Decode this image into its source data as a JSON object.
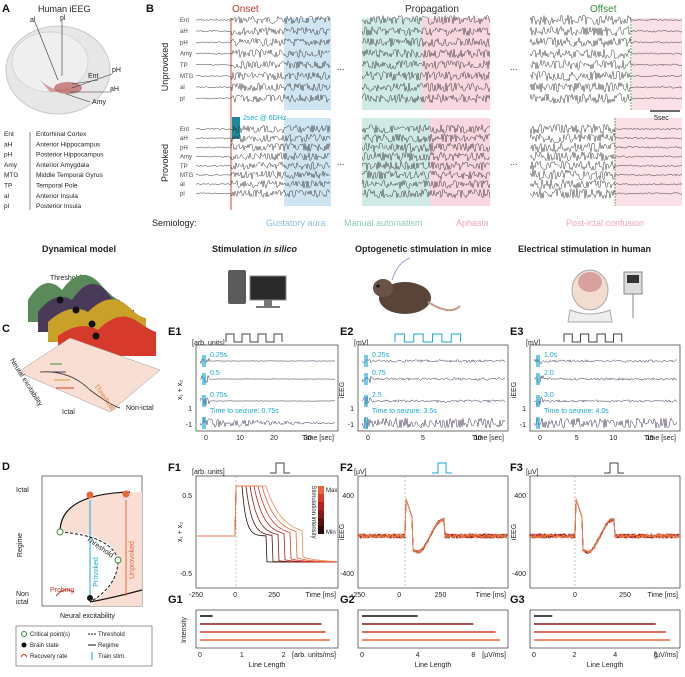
{
  "colors": {
    "onset": "#c0392b",
    "offset": "#3a8f3a",
    "gustatory": "#a9cfe8",
    "manual": "#a8d9cf",
    "aphasia": "#f2b6c6",
    "postictal": "#f6c6d4",
    "stim_cyan": "#18a8d8",
    "trace_dark": "#3b2a4a",
    "red": "#c0392b",
    "orange": "#e8663a"
  },
  "panelA": {
    "letter": "A",
    "title": "Human iEEG",
    "brain_labels": [
      "al",
      "pl",
      "Ent",
      "pH",
      "aH",
      "Amy"
    ],
    "legend": [
      {
        "abbr": "Ent",
        "name": "Entorhinal Cortex"
      },
      {
        "abbr": "aH",
        "name": "Anterior Hippocampus"
      },
      {
        "abbr": "pH",
        "name": "Posterior Hippocampus"
      },
      {
        "abbr": "Amy",
        "name": "Anterior Amygdala"
      },
      {
        "abbr": "MTG",
        "name": "Middle Temporal Gyrus"
      },
      {
        "abbr": "TP",
        "name": "Temporal Pole"
      },
      {
        "abbr": "al",
        "name": "Anterior Insula"
      },
      {
        "abbr": "pl",
        "name": "Posterior Insula"
      }
    ]
  },
  "panelB": {
    "letter": "B",
    "phases": [
      "Onset",
      "Propagation",
      "Offset"
    ],
    "rows": [
      "Unprovoked",
      "Provoked"
    ],
    "channels": [
      "Ent",
      "aH",
      "pH",
      "Amy",
      "TP",
      "MTG",
      "al",
      "pl"
    ],
    "ellipsis": "...",
    "scalebar": "5sec",
    "stim_note": "2sec @ 6DHz",
    "semiology_label": "Semiology:",
    "semiology": [
      "Gustatory aura",
      "Manual automatism",
      "Aphasia",
      "Post-ictal confusion"
    ]
  },
  "panelC": {
    "letter": "C",
    "title": "Dynamical model",
    "threshold": "Threshold",
    "threshold2": "Threshold",
    "axis": "Neural excitability",
    "ictal": "Ictal",
    "nonictal": "Non-ictal"
  },
  "headers": {
    "insilico_prefix": "Stimulation",
    "insilico_em": "in silico",
    "opto": "Optogenetic stimulation in mice",
    "elec": "Electrical stimulation in human"
  },
  "panelE": [
    {
      "letter": "E1",
      "unit": "[arb. units]",
      "ylabel": "x₁ + x₂",
      "durations": [
        "0.25s",
        "0.5",
        "0.75s"
      ],
      "seizure": "Time to seizure: 0.75s",
      "yticks": [
        "1",
        "-1"
      ],
      "xticks": [
        "0",
        "10",
        "20",
        "30"
      ],
      "xlabel": "Time [sec]"
    },
    {
      "letter": "E2",
      "unit": "[mV]",
      "ylabel": "iEEG",
      "durations": [
        "0.25s",
        "0.75",
        "2.5"
      ],
      "seizure": "Time to seizure: 3.5s",
      "yticks": [
        "1",
        "-1"
      ],
      "xticks": [
        "0",
        "5",
        "10"
      ],
      "xlabel": "Time [sec]"
    },
    {
      "letter": "E3",
      "unit": "[mV]",
      "ylabel": "iEEG",
      "durations": [
        "1.0s",
        "2.0",
        "3.0"
      ],
      "seizure": "Time to seizure: 4.0s",
      "yticks": [
        "1",
        "-1"
      ],
      "xticks": [
        "0",
        "5",
        "10",
        "15"
      ],
      "xlabel": "Time [sec]"
    }
  ],
  "panelF": [
    {
      "letter": "F1",
      "unit": "[arb. units]",
      "ylabel": "x₁ + x₂",
      "yticks": [
        "0.5",
        "-0.5"
      ],
      "xticks": [
        "-250",
        "0",
        "250"
      ],
      "xlabel": "Time [ms]",
      "cbar_title": "Stimulation intensity",
      "cbar_max": "Max",
      "cbar_min": "Min"
    },
    {
      "letter": "F2",
      "unit": "[µV]",
      "ylabel": "iEEG",
      "yticks": [
        "400",
        "-400"
      ],
      "xticks": [
        "-250",
        "0",
        "250"
      ],
      "xlabel": "Time [ms]"
    },
    {
      "letter": "F3",
      "unit": "[µV]",
      "ylabel": "iEEG",
      "yticks": [
        "400",
        "-400"
      ],
      "xticks": [
        "0",
        "250"
      ],
      "xlabel": "Time [ms]"
    }
  ],
  "panelG": [
    {
      "letter": "G1",
      "ylabel": "Intensity",
      "xticks": [
        "0",
        "1",
        "2"
      ],
      "unit": "[arb. units/ms]",
      "xlabel": "Line Length"
    },
    {
      "letter": "G2",
      "xticks": [
        "0",
        "4",
        "8"
      ],
      "unit": "[µV/ms]",
      "xlabel": "Line Length"
    },
    {
      "letter": "G3",
      "xticks": [
        "0",
        "2",
        "4",
        "6"
      ],
      "unit": "[µV/ms]",
      "xlabel": "Line Length"
    }
  ],
  "panelD": {
    "letter": "D",
    "ictal": "Ictal",
    "regime": "Regime",
    "nonictal_1": "Non",
    "nonictal_2": "ictal",
    "threshold": "Threshold",
    "unprovoked": "Unprovoked",
    "provoked": "Provoked",
    "probing": "Probing",
    "xlabel": "Neural excitability",
    "legend": [
      "Critical point(s)",
      "Threshold",
      "Brain state",
      "Regime",
      "Recovery rate",
      "Train stim."
    ]
  },
  "chart_data": [
    {
      "type": "bar",
      "title": "G1",
      "xlabel": "Line Length",
      "ylabel": "Intensity",
      "categories": [
        "1",
        "2",
        "3",
        "4"
      ],
      "values": [
        0.3,
        2.9,
        3.0,
        3.1
      ],
      "xlim": [
        0,
        3.2
      ]
    },
    {
      "type": "bar",
      "title": "G2",
      "xlabel": "Line Length",
      "categories": [
        "1",
        "2",
        "3",
        "4"
      ],
      "values": [
        4.0,
        8.0,
        9.6,
        9.9
      ],
      "xlim": [
        0,
        10.2
      ]
    },
    {
      "type": "bar",
      "title": "G3",
      "xlabel": "Line Length",
      "categories": [
        "1",
        "2",
        "3",
        "4"
      ],
      "values": [
        0.9,
        6.0,
        6.5,
        6.7
      ],
      "xlim": [
        0,
        7
      ]
    }
  ]
}
